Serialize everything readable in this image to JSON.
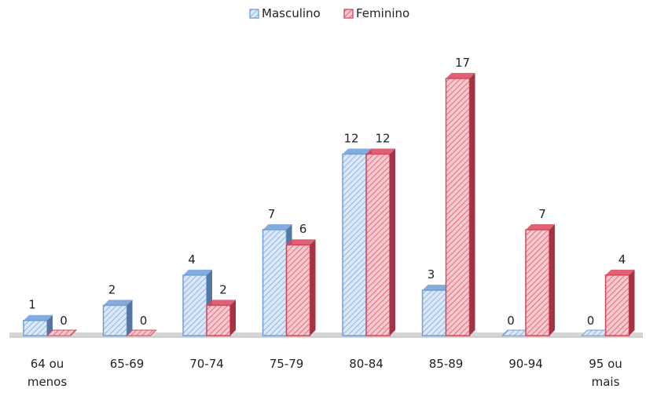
{
  "chart_data": {
    "type": "bar",
    "categories": [
      "64 ou menos",
      "65-69",
      "70-74",
      "75-79",
      "80-84",
      "85-89",
      "90-94",
      "95 ou mais"
    ],
    "category_lines": [
      [
        "64 ou",
        "menos"
      ],
      [
        "65-69"
      ],
      [
        "70-74"
      ],
      [
        "75-79"
      ],
      [
        "80-84"
      ],
      [
        "85-89"
      ],
      [
        "90-94"
      ],
      [
        "95 ou",
        "mais"
      ]
    ],
    "series": [
      {
        "name": "Masculino",
        "values": [
          1,
          2,
          4,
          7,
          12,
          3,
          0,
          0
        ],
        "color": "#6f9fd8",
        "fill": "#dbe8f7"
      },
      {
        "name": "Feminino",
        "values": [
          0,
          0,
          2,
          6,
          12,
          17,
          7,
          4
        ],
        "color": "#d9455a",
        "fill": "#f6c9cf"
      }
    ],
    "ylim": [
      0,
      17
    ],
    "grid": false,
    "legend_position": "top-center",
    "data_labels": true,
    "style": "3d-hatched"
  }
}
